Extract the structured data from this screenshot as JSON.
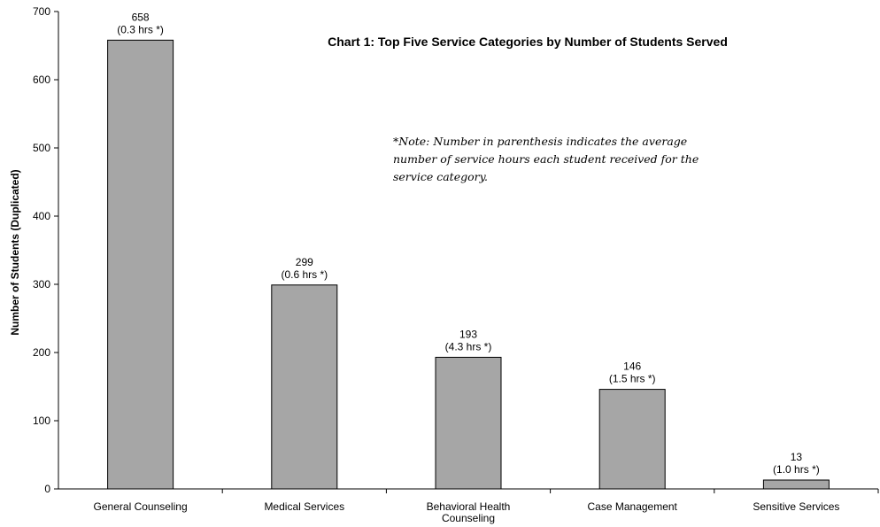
{
  "chart_data": {
    "type": "bar",
    "title": "Chart 1: Top Five Service Categories by Number of Students Served",
    "ylabel": "Number of Students (Duplicated)",
    "xlabel": "",
    "ylim": [
      0,
      700
    ],
    "yticks": [
      "0",
      "100",
      "200",
      "300",
      "400",
      "500",
      "600",
      "700"
    ],
    "categories": [
      [
        "General Counseling"
      ],
      [
        "Medical Services"
      ],
      [
        "Behavioral Health",
        "Counseling"
      ],
      [
        "Case Management"
      ],
      [
        "Sensitive Services"
      ]
    ],
    "values": [
      658,
      299,
      193,
      146,
      13
    ],
    "data_labels": [
      [
        "658",
        "(0.3 hrs *)"
      ],
      [
        "299",
        "(0.6 hrs *)"
      ],
      [
        "193",
        "(4.3 hrs *)"
      ],
      [
        "146",
        "(1.5 hrs *)"
      ],
      [
        "13",
        "(1.0 hrs *)"
      ]
    ],
    "note": "*Note: Number in parenthesis indicates the average number of service hours each student received for the service category.",
    "bar_color": "#a6a6a6",
    "grid": false,
    "legend": "none"
  }
}
